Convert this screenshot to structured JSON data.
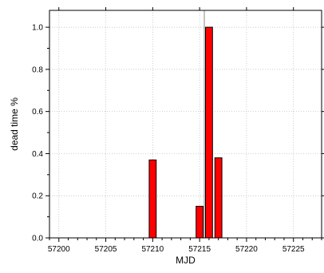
{
  "chart_data": {
    "type": "bar",
    "xlabel": "MJD",
    "ylabel": "dead time %",
    "xlim": [
      57199,
      57228
    ],
    "ylim": [
      0,
      1.08
    ],
    "x_ticks": [
      57200,
      57205,
      57210,
      57215,
      57220,
      57225
    ],
    "x_tick_labels": [
      "57200",
      "57205",
      "57210",
      "57215",
      "57220",
      "57225"
    ],
    "y_ticks": [
      0.0,
      0.2,
      0.4,
      0.6,
      0.8,
      1.0
    ],
    "y_tick_labels": [
      "0.0",
      "0.2",
      "0.4",
      "0.6",
      "0.8",
      "1.0"
    ],
    "bar_width": 0.75,
    "bar_color": "#ff0000",
    "bar_edge_color": "#000000",
    "grid": true,
    "bars": [
      {
        "x": 57210,
        "value": 0.37
      },
      {
        "x": 57215,
        "value": 0.15
      },
      {
        "x": 57216,
        "value": 1.0
      },
      {
        "x": 57217,
        "value": 0.38
      }
    ],
    "reference_line_x": 57215.5
  }
}
